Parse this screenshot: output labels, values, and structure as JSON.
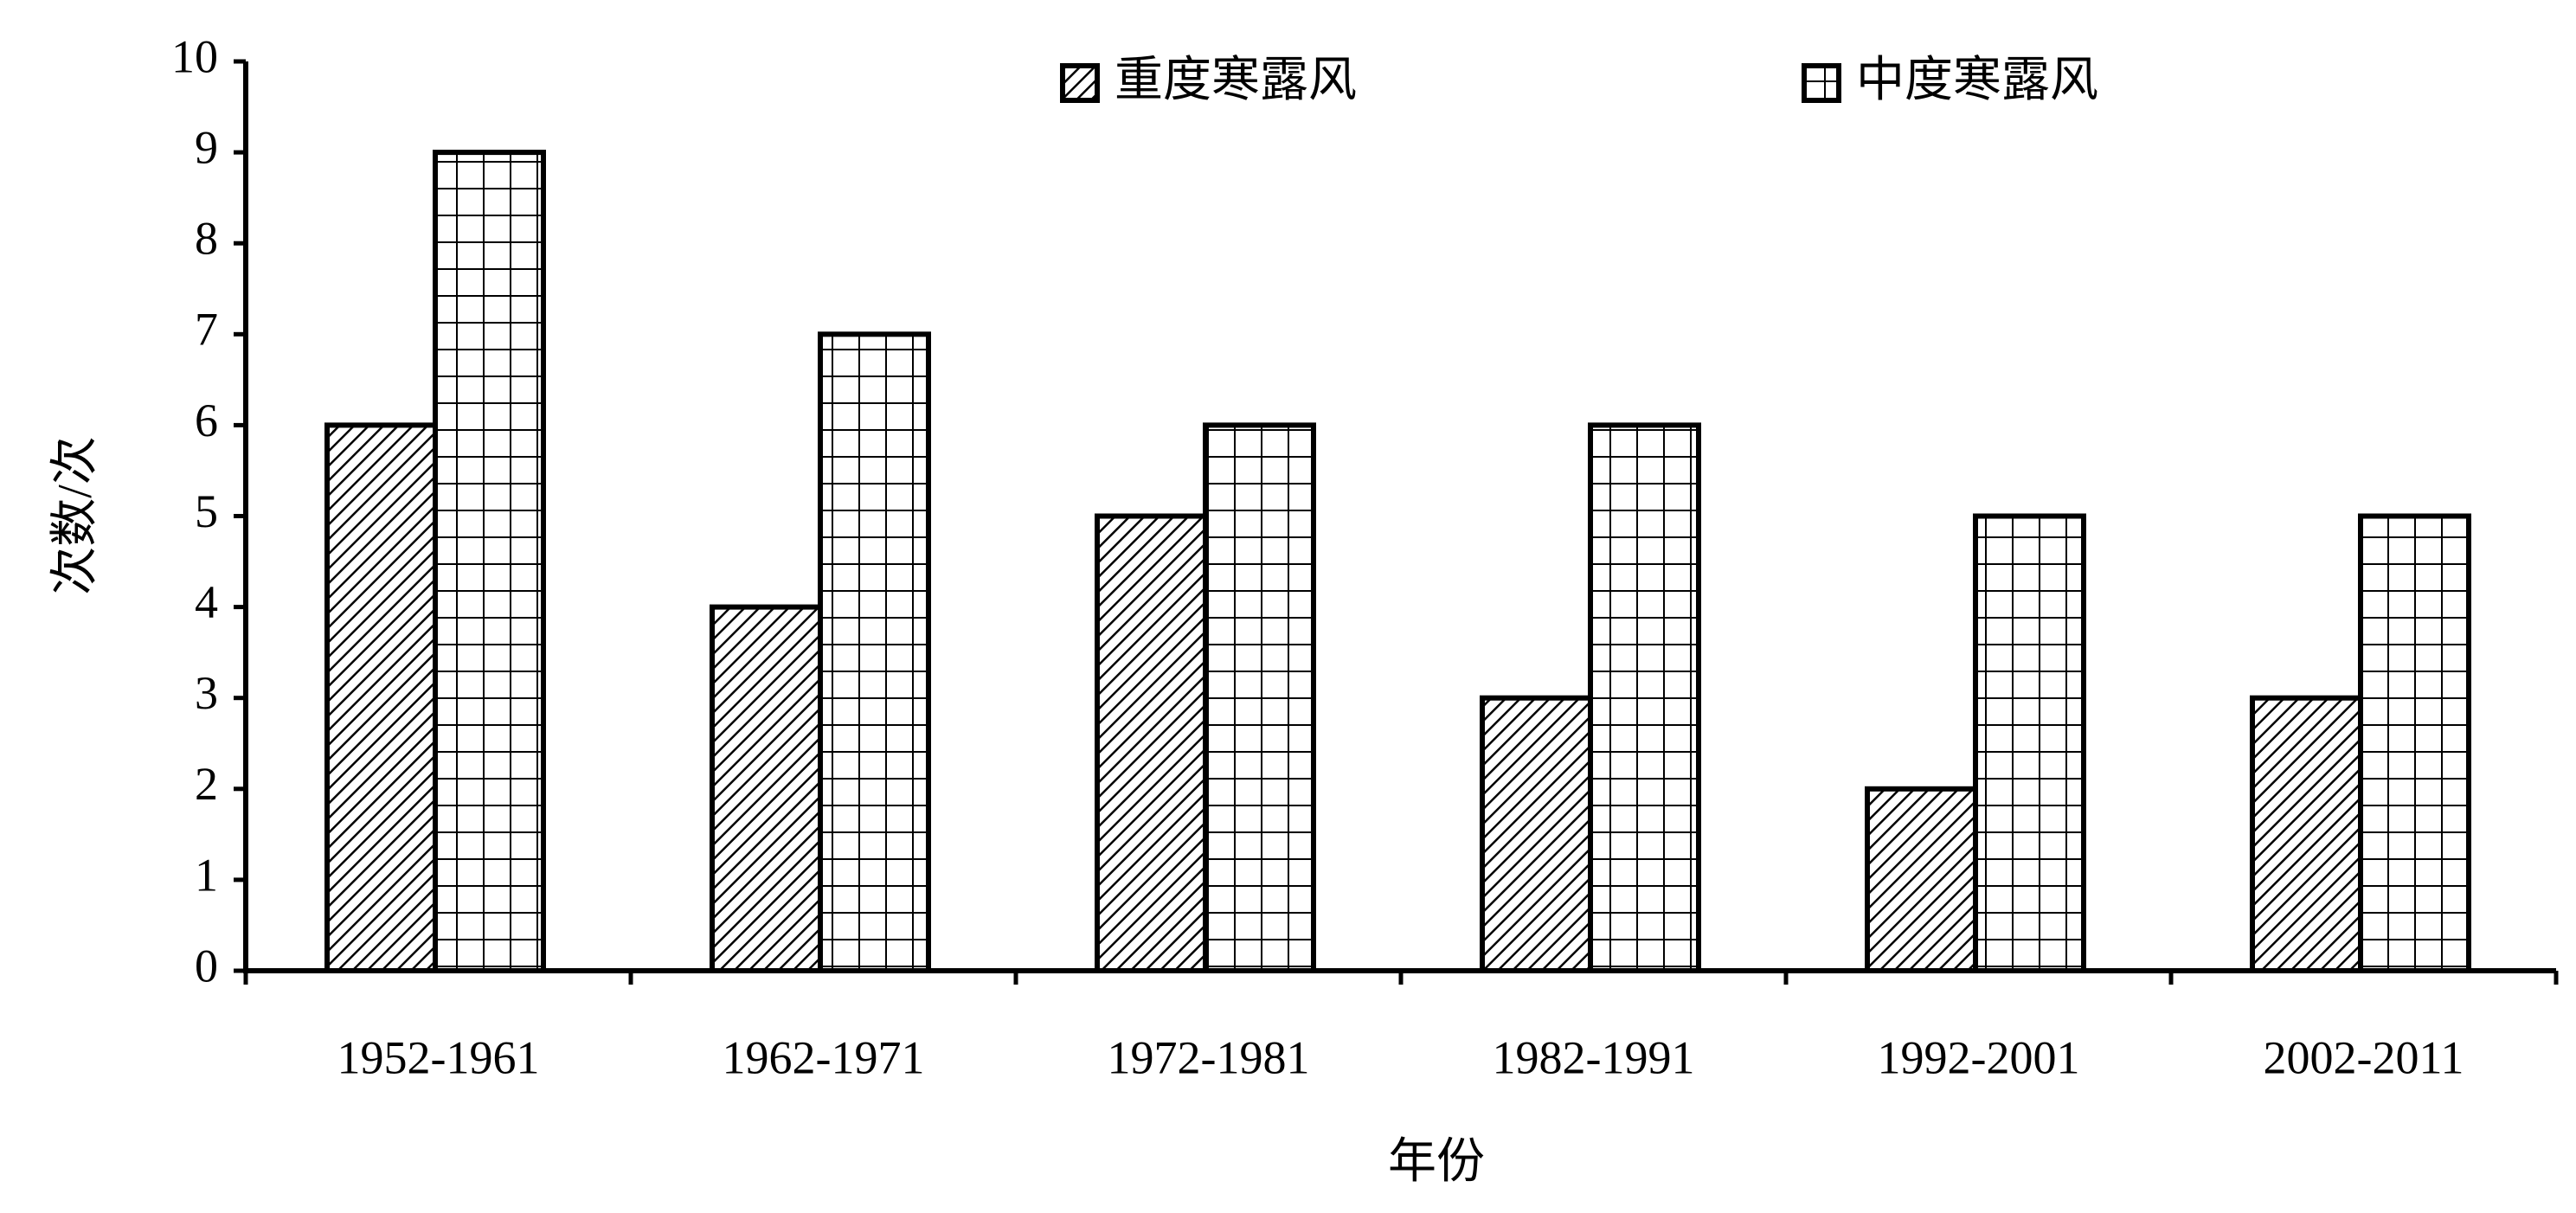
{
  "chart_data": {
    "type": "bar",
    "x_label": "年份",
    "y_label": "次数/次",
    "categories": [
      "1952-1961",
      "1962-1971",
      "1972-1981",
      "1982-1991",
      "1992-2001",
      "2002-2011"
    ],
    "series": [
      {
        "name": "重度寒露风",
        "color": "#000000",
        "pattern": "hatch",
        "values": [
          6,
          4,
          5,
          3,
          2,
          3
        ]
      },
      {
        "name": "中度寒露风",
        "color": "#000000",
        "pattern": "grid",
        "values": [
          9,
          7,
          6,
          6,
          5,
          5
        ]
      }
    ],
    "ylim": [
      0,
      10
    ],
    "yticks": [
      0,
      1,
      2,
      3,
      4,
      5,
      6,
      7,
      8,
      9,
      10
    ],
    "grid": false,
    "legend": "top"
  }
}
